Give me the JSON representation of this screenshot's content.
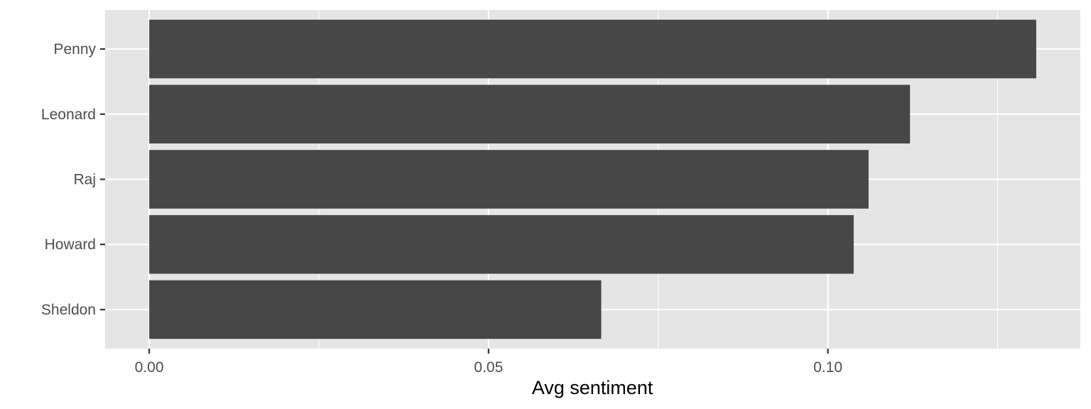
{
  "chart_data": {
    "type": "bar",
    "orientation": "horizontal",
    "categories": [
      "Penny",
      "Leonard",
      "Raj",
      "Howard",
      "Sheldon"
    ],
    "values": [
      0.1307,
      0.1121,
      0.106,
      0.1038,
      0.0666
    ],
    "title": "",
    "xlabel": "Avg sentiment",
    "ylabel": "",
    "xlim": [
      -0.0065,
      0.1372
    ],
    "x_ticks": [
      0.0,
      0.05,
      0.1
    ],
    "x_tick_labels": [
      "0.00",
      "0.05",
      "0.10"
    ],
    "grid": true,
    "legend": "none",
    "colors": {
      "bar": "#474747",
      "panel_background": "#e5e5e5",
      "grid": "#ffffff",
      "tick_text": "#4d4d4d",
      "axis_title": "#000000"
    }
  }
}
